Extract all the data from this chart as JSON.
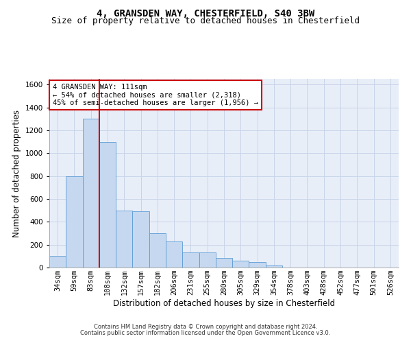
{
  "title1": "4, GRANSDEN WAY, CHESTERFIELD, S40 3BW",
  "title2": "Size of property relative to detached houses in Chesterfield",
  "xlabel": "Distribution of detached houses by size in Chesterfield",
  "ylabel": "Number of detached properties",
  "categories": [
    "34sqm",
    "59sqm",
    "83sqm",
    "108sqm",
    "132sqm",
    "157sqm",
    "182sqm",
    "206sqm",
    "231sqm",
    "255sqm",
    "280sqm",
    "305sqm",
    "329sqm",
    "354sqm",
    "378sqm",
    "403sqm",
    "428sqm",
    "452sqm",
    "477sqm",
    "501sqm",
    "526sqm"
  ],
  "values": [
    100,
    800,
    1300,
    1100,
    500,
    490,
    300,
    230,
    130,
    130,
    85,
    60,
    50,
    20,
    0,
    0,
    0,
    0,
    0,
    0,
    0
  ],
  "bar_color": "#c5d8ef",
  "bar_edge_color": "#5b9bd5",
  "grid_color": "#c8d4e8",
  "background_color": "#e8eef8",
  "vline_color": "#cc0000",
  "vline_position": 2.5,
  "annotation_text": "4 GRANSDEN WAY: 111sqm\n← 54% of detached houses are smaller (2,318)\n45% of semi-detached houses are larger (1,956) →",
  "annotation_box_color": "#cc0000",
  "ylim": [
    0,
    1650
  ],
  "yticks": [
    0,
    200,
    400,
    600,
    800,
    1000,
    1200,
    1400,
    1600
  ],
  "footer1": "Contains HM Land Registry data © Crown copyright and database right 2024.",
  "footer2": "Contains public sector information licensed under the Open Government Licence v3.0.",
  "title_fontsize": 10,
  "subtitle_fontsize": 9,
  "axis_label_fontsize": 8.5,
  "tick_fontsize": 7.5,
  "annotation_fontsize": 7.5,
  "footer_fontsize": 6
}
